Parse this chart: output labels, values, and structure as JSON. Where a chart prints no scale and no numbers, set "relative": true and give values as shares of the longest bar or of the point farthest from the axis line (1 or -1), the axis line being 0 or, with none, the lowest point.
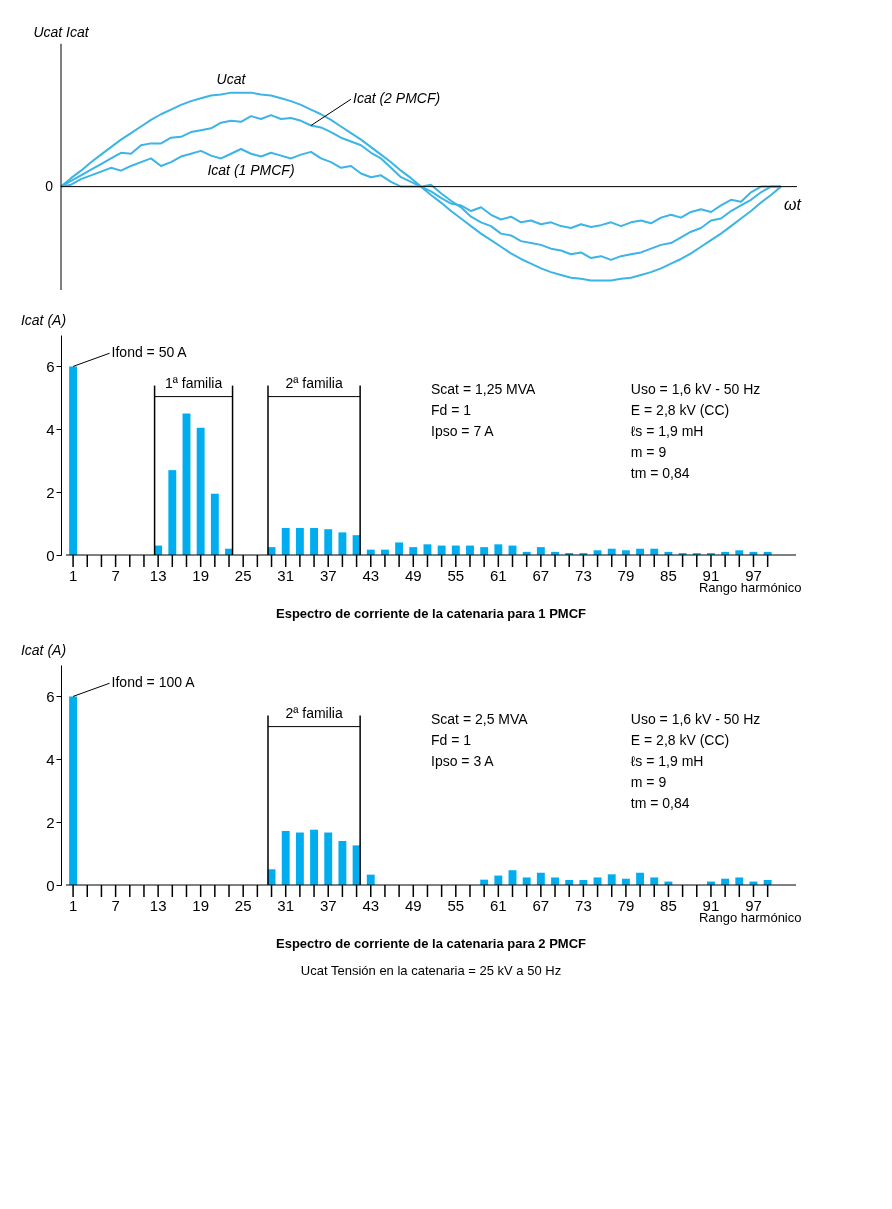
{
  "chart_data": [
    {
      "type": "line",
      "relative": true,
      "ylabel": "Ucat Icat",
      "xlabel": "ωt",
      "legend": false,
      "grid": false,
      "categories": [
        null,
        null,
        null,
        null,
        null,
        null,
        null,
        null,
        null,
        null,
        null,
        null,
        null,
        null,
        null,
        null,
        null,
        null,
        null,
        null,
        null,
        null,
        null,
        null,
        null,
        null,
        null,
        null,
        null,
        null,
        null,
        null,
        null,
        null,
        null,
        null,
        null,
        null,
        null,
        null,
        null,
        null,
        null,
        null,
        null,
        null,
        null,
        null,
        null,
        null,
        null,
        null,
        null,
        null,
        null,
        null,
        null,
        null,
        null,
        null,
        null,
        null,
        null,
        null,
        null,
        null,
        null,
        null,
        null,
        null,
        null,
        null,
        null
      ],
      "annotations": [
        "0"
      ],
      "series": [
        {
          "name": "Ucat",
          "color": "#3cb4e5",
          "values": [
            0,
            0.09,
            0.17,
            0.26,
            0.34,
            0.42,
            0.5,
            0.57,
            0.64,
            0.71,
            0.77,
            0.82,
            0.87,
            0.91,
            0.94,
            0.97,
            0.98,
            1,
            1,
            1,
            0.98,
            0.97,
            0.94,
            0.91,
            0.87,
            0.82,
            0.77,
            0.71,
            0.64,
            0.57,
            0.5,
            0.42,
            0.34,
            0.26,
            0.17,
            0.09,
            0,
            -0.09,
            -0.17,
            -0.26,
            -0.34,
            -0.42,
            -0.5,
            -0.57,
            -0.64,
            -0.71,
            -0.77,
            -0.82,
            -0.87,
            -0.91,
            -0.94,
            -0.97,
            -0.98,
            -1,
            -1,
            -1,
            -0.98,
            -0.97,
            -0.94,
            -0.91,
            -0.87,
            -0.82,
            -0.77,
            -0.71,
            -0.64,
            -0.57,
            -0.5,
            -0.42,
            -0.34,
            -0.26,
            -0.17,
            -0.09,
            0
          ]
        },
        {
          "name": "Icat (2 PMCF)",
          "color": "#3cb4e5",
          "values": [
            0,
            0.06,
            0.12,
            0.18,
            0.24,
            0.3,
            0.36,
            0.35,
            0.44,
            0.46,
            0.46,
            0.52,
            0.53,
            0.58,
            0.6,
            0.62,
            0.68,
            0.7,
            0.69,
            0.75,
            0.72,
            0.76,
            0.72,
            0.73,
            0.7,
            0.65,
            0.63,
            0.58,
            0.52,
            0.48,
            0.44,
            0.36,
            0.3,
            0.2,
            0.1,
            0.05,
            0,
            0.02,
            -0.07,
            -0.15,
            -0.22,
            -0.32,
            -0.38,
            -0.42,
            -0.5,
            -0.52,
            -0.58,
            -0.6,
            -0.62,
            -0.66,
            -0.68,
            -0.72,
            -0.7,
            -0.76,
            -0.74,
            -0.78,
            -0.74,
            -0.72,
            -0.7,
            -0.66,
            -0.62,
            -0.6,
            -0.54,
            -0.48,
            -0.44,
            -0.36,
            -0.34,
            -0.26,
            -0.2,
            -0.14,
            -0.06,
            0,
            0
          ]
        },
        {
          "name": "Icat (1 PMCF)",
          "color": "#3cb4e5",
          "values": [
            0,
            0.02,
            0.08,
            0.12,
            0.16,
            0.2,
            0.17,
            0.22,
            0.26,
            0.3,
            0.22,
            0.26,
            0.32,
            0.35,
            0.38,
            0.33,
            0.3,
            0.35,
            0.4,
            0.35,
            0.32,
            0.36,
            0.33,
            0.3,
            0.34,
            0.37,
            0.3,
            0.26,
            0.2,
            0.22,
            0.14,
            0.1,
            0.12,
            0.05,
            0,
            0,
            0,
            -0.05,
            -0.12,
            -0.18,
            -0.2,
            -0.26,
            -0.22,
            -0.3,
            -0.35,
            -0.32,
            -0.38,
            -0.36,
            -0.4,
            -0.38,
            -0.42,
            -0.44,
            -0.4,
            -0.43,
            -0.41,
            -0.38,
            -0.42,
            -0.38,
            -0.36,
            -0.39,
            -0.33,
            -0.3,
            -0.33,
            -0.27,
            -0.24,
            -0.27,
            -0.2,
            -0.14,
            -0.16,
            -0.06,
            0,
            0,
            0
          ]
        }
      ]
    },
    {
      "type": "bar",
      "title": "Espectro de corriente de la catenaria para 1 PMCF",
      "ylabel": "Icat (A)",
      "xlabel": "Rango harmónico",
      "grid": false,
      "x": [
        1,
        3,
        5,
        7,
        9,
        11,
        13,
        15,
        17,
        19,
        21,
        23,
        25,
        27,
        29,
        31,
        33,
        35,
        37,
        39,
        41,
        43,
        45,
        47,
        49,
        51,
        53,
        55,
        57,
        59,
        61,
        63,
        65,
        67,
        69,
        71,
        73,
        75,
        77,
        79,
        81,
        83,
        85,
        87,
        89,
        91,
        93,
        95,
        97,
        99
      ],
      "values": [
        6,
        0,
        0,
        0,
        0,
        0,
        0.3,
        2.7,
        4.5,
        4.05,
        1.95,
        0.2,
        0,
        0,
        0.25,
        0.86,
        0.86,
        0.86,
        0.82,
        0.72,
        0.63,
        0.17,
        0.17,
        0.4,
        0.25,
        0.34,
        0.3,
        0.3,
        0.3,
        0.25,
        0.34,
        0.3,
        0.1,
        0.25,
        0.1,
        0.06,
        0.06,
        0.15,
        0.2,
        0.15,
        0.2,
        0.2,
        0.1,
        0.06,
        0.06,
        0.06,
        0.1,
        0.15,
        0.1,
        0.1
      ],
      "color": "#00aeef",
      "ylim": [
        0,
        7
      ],
      "yticks": [
        0,
        2,
        4,
        6
      ],
      "xlim": [
        0,
        103
      ],
      "xticks": [
        1,
        {
          "value": 3,
          "label": null
        },
        {
          "value": 5,
          "label": null
        },
        7,
        {
          "value": 9,
          "label": null
        },
        {
          "value": 11,
          "label": null
        },
        13,
        {
          "value": 15,
          "label": null
        },
        {
          "value": 17,
          "label": null
        },
        19,
        {
          "value": 21,
          "label": null
        },
        {
          "value": 23,
          "label": null
        },
        25,
        {
          "value": 27,
          "label": null
        },
        {
          "value": 29,
          "label": null
        },
        31,
        {
          "value": 33,
          "label": null
        },
        {
          "value": 35,
          "label": null
        },
        37,
        {
          "value": 39,
          "label": null
        },
        {
          "value": 41,
          "label": null
        },
        43,
        {
          "value": 45,
          "label": null
        },
        {
          "value": 47,
          "label": null
        },
        49,
        {
          "value": 51,
          "label": null
        },
        {
          "value": 53,
          "label": null
        },
        55,
        {
          "value": 57,
          "label": null
        },
        {
          "value": 59,
          "label": null
        },
        61,
        {
          "value": 63,
          "label": null
        },
        {
          "value": 65,
          "label": null
        },
        67,
        {
          "value": 69,
          "label": null
        },
        {
          "value": 71,
          "label": null
        },
        73,
        {
          "value": 75,
          "label": null
        },
        {
          "value": 77,
          "label": null
        },
        79,
        {
          "value": 81,
          "label": null
        },
        {
          "value": 83,
          "label": null
        },
        85,
        {
          "value": 87,
          "label": null
        },
        {
          "value": 89,
          "label": null
        },
        91,
        {
          "value": 93,
          "label": null
        },
        {
          "value": 95,
          "label": null
        },
        97,
        {
          "value": 99,
          "label": null
        }
      ],
      "ref_lines": [
        {
          "axis": "x",
          "value": 12.5,
          "label": "1ª familia"
        },
        {
          "axis": "x",
          "value": 23.5
        },
        {
          "axis": "x",
          "value": 28.5,
          "label": "2ª familia"
        },
        {
          "axis": "x",
          "value": 41.5
        }
      ],
      "annotations": [
        {
          "text": "Ifond = 50 A",
          "x": 1,
          "y": 6
        },
        "Scat = 1,25 MVA",
        "Fd = 1",
        "Ipso = 7 A",
        "Uso = 1,6 kV - 50 Hz",
        "E = 2,8 kV (CC)",
        "ℓs = 1,9 mH",
        "m = 9",
        "tm = 0,84"
      ]
    },
    {
      "type": "bar",
      "title": "Espectro de corriente de la catenaria para 2 PMCF",
      "ylabel": "Icat (A)",
      "xlabel": "Rango harmónico",
      "grid": false,
      "x": [
        1,
        3,
        5,
        7,
        9,
        11,
        13,
        15,
        17,
        19,
        21,
        23,
        25,
        27,
        29,
        31,
        33,
        35,
        37,
        39,
        41,
        43,
        45,
        47,
        49,
        51,
        53,
        55,
        57,
        59,
        61,
        63,
        65,
        67,
        69,
        71,
        73,
        75,
        77,
        79,
        81,
        83,
        85,
        87,
        89,
        91,
        93,
        95,
        97,
        99
      ],
      "values": [
        6,
        0,
        0,
        0,
        0,
        0,
        0,
        0,
        0,
        0,
        0,
        0,
        0,
        0,
        0.5,
        1.72,
        1.67,
        1.76,
        1.67,
        1.4,
        1.26,
        0.33,
        0,
        0,
        0,
        0,
        0,
        0,
        0,
        0.17,
        0.3,
        0.47,
        0.24,
        0.39,
        0.24,
        0.16,
        0.16,
        0.24,
        0.34,
        0.2,
        0.39,
        0.24,
        0.11,
        0,
        0,
        0.11,
        0.2,
        0.24,
        0.11,
        0.16
      ],
      "color": "#00aeef",
      "ylim": [
        0,
        7
      ],
      "yticks": [
        0,
        2,
        4,
        6
      ],
      "xlim": [
        0,
        103
      ],
      "xticks": [
        1,
        {
          "value": 3,
          "label": null
        },
        {
          "value": 5,
          "label": null
        },
        7,
        {
          "value": 9,
          "label": null
        },
        {
          "value": 11,
          "label": null
        },
        13,
        {
          "value": 15,
          "label": null
        },
        {
          "value": 17,
          "label": null
        },
        19,
        {
          "value": 21,
          "label": null
        },
        {
          "value": 23,
          "label": null
        },
        25,
        {
          "value": 27,
          "label": null
        },
        {
          "value": 29,
          "label": null
        },
        31,
        {
          "value": 33,
          "label": null
        },
        {
          "value": 35,
          "label": null
        },
        37,
        {
          "value": 39,
          "label": null
        },
        {
          "value": 41,
          "label": null
        },
        43,
        {
          "value": 45,
          "label": null
        },
        {
          "value": 47,
          "label": null
        },
        49,
        {
          "value": 51,
          "label": null
        },
        {
          "value": 53,
          "label": null
        },
        55,
        {
          "value": 57,
          "label": null
        },
        {
          "value": 59,
          "label": null
        },
        61,
        {
          "value": 63,
          "label": null
        },
        {
          "value": 65,
          "label": null
        },
        67,
        {
          "value": 69,
          "label": null
        },
        {
          "value": 71,
          "label": null
        },
        73,
        {
          "value": 75,
          "label": null
        },
        {
          "value": 77,
          "label": null
        },
        79,
        {
          "value": 81,
          "label": null
        },
        {
          "value": 83,
          "label": null
        },
        85,
        {
          "value": 87,
          "label": null
        },
        {
          "value": 89,
          "label": null
        },
        91,
        {
          "value": 93,
          "label": null
        },
        {
          "value": 95,
          "label": null
        },
        97,
        {
          "value": 99,
          "label": null
        }
      ],
      "ref_lines": [
        {
          "axis": "x",
          "value": 28.5,
          "label": "2ª familia"
        },
        {
          "axis": "x",
          "value": 41.5
        }
      ],
      "annotations": [
        {
          "text": "Ifond = 100 A",
          "x": 1,
          "y": 6
        },
        "Scat = 2,5  MVA",
        "Fd = 1",
        "Ipso = 3 A",
        "Uso = 1,6 kV - 50 Hz",
        "E = 2,8 kV (CC)",
        "ℓs = 1,9 mH",
        "m = 9",
        "tm = 0,84",
        "Ucat   Tensión en la catenaria = 25 kV a 50 Hz"
      ]
    }
  ]
}
